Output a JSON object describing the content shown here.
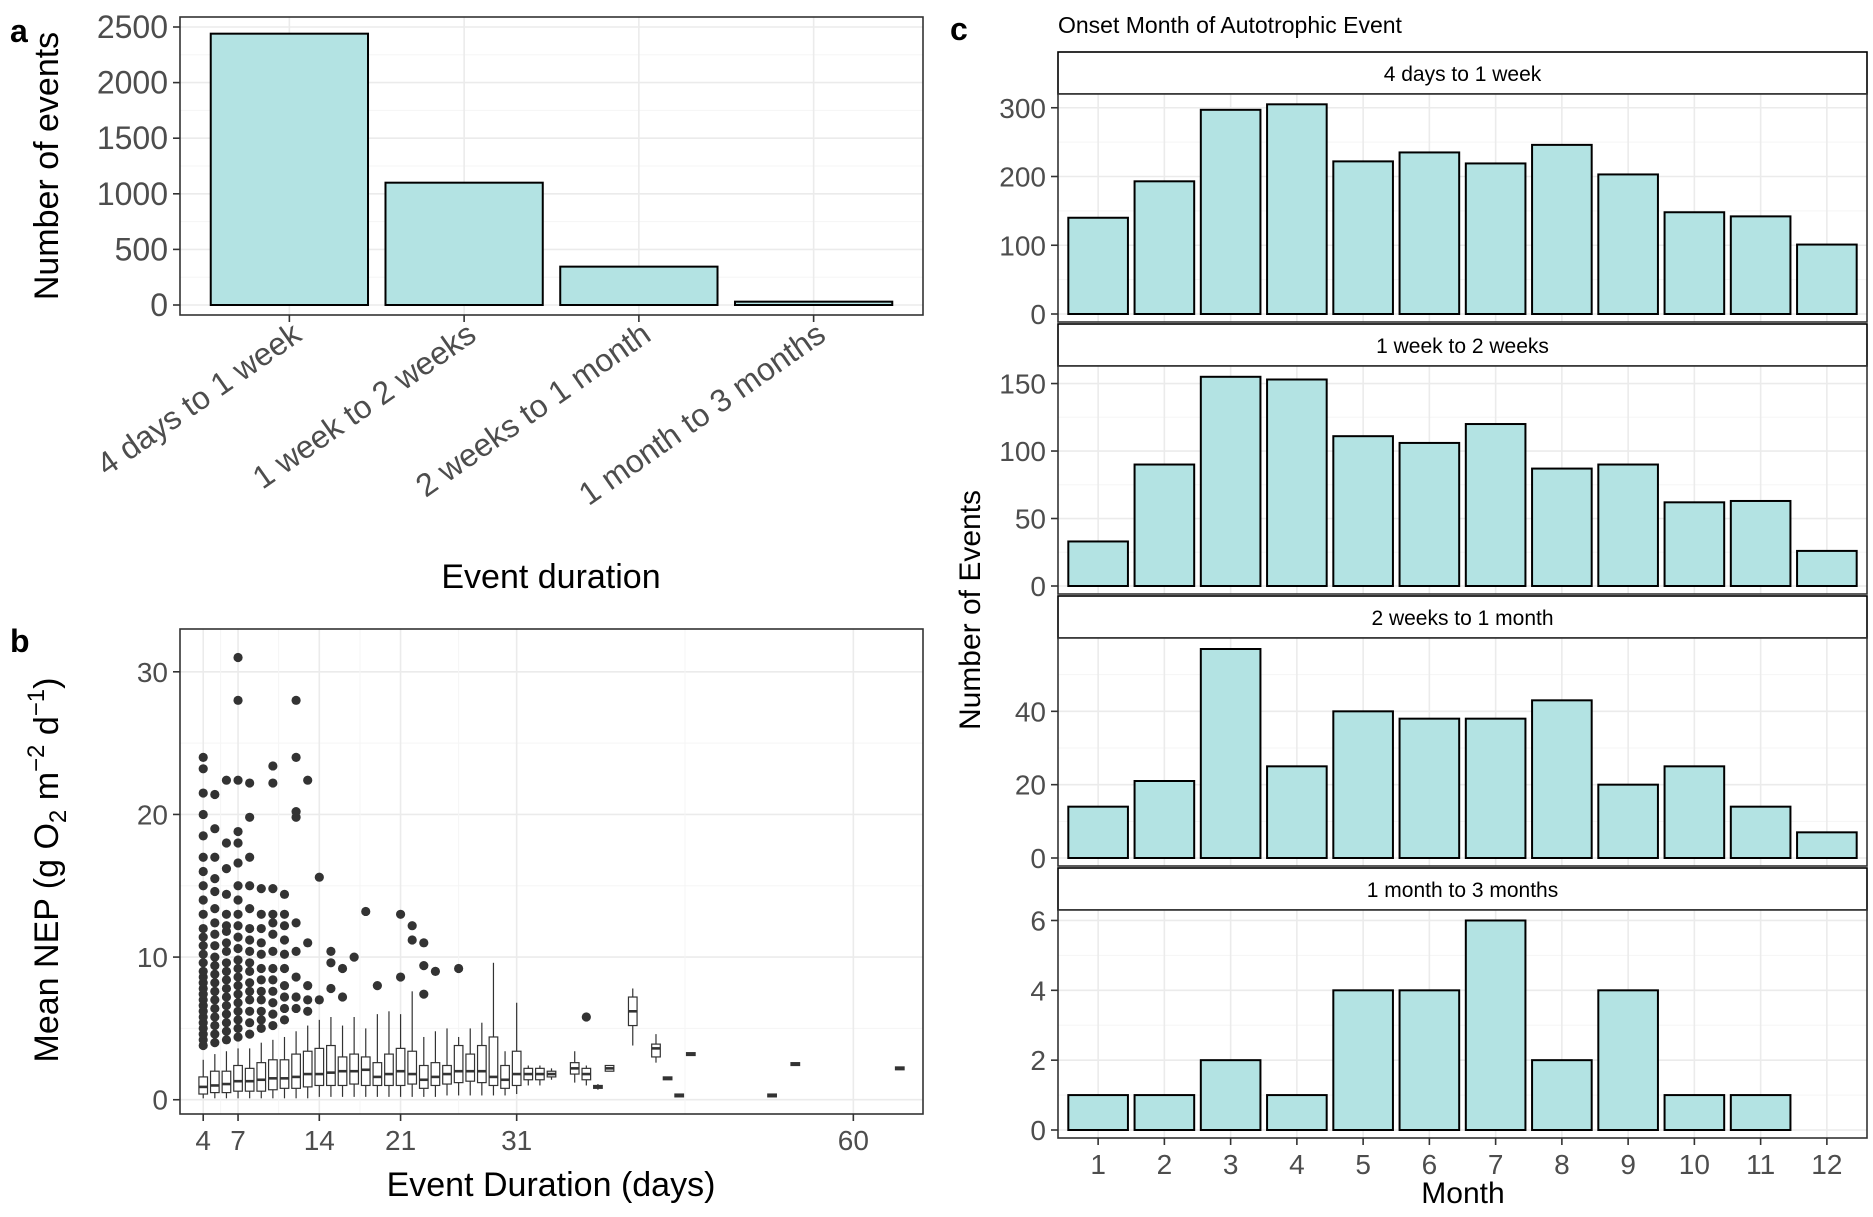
{
  "panel_labels": {
    "a": "a",
    "b": "b",
    "c": "c"
  },
  "colors": {
    "bar_fill": "#b3e3e3",
    "bar_stroke": "#000000",
    "outlier": "#333333"
  },
  "chart_data": [
    {
      "id": "a",
      "type": "bar",
      "title": "",
      "xlabel": "Event duration",
      "ylabel": "Number of events",
      "categories": [
        "4 days to 1 week",
        "1 week to 2 weeks",
        "2 weeks to 1 month",
        "1 month to 3 months"
      ],
      "values": [
        2440,
        1100,
        345,
        30
      ],
      "ylim": [
        0,
        2500
      ],
      "yticks": [
        0,
        500,
        1000,
        1500,
        2000,
        2500
      ],
      "grid": true
    },
    {
      "id": "b",
      "type": "box",
      "xlabel": "Event Duration (days)",
      "ylabel": "Mean NEP (g O2 m-2 d-1)",
      "ylabel_parts": {
        "pre": "Mean NEP (g  O",
        "sub": "2",
        "mid1": " m",
        "sup1": "−2",
        "mid2": " d",
        "sup2": "−1",
        "post": ")"
      },
      "xlim": [
        2,
        66
      ],
      "ylim": [
        -1,
        33
      ],
      "xticks": [
        4,
        7,
        14,
        21,
        31,
        60
      ],
      "yticks": [
        0,
        10,
        20,
        30
      ],
      "grid": true,
      "boxes": [
        {
          "x": 4,
          "q1": 0.4,
          "med": 0.9,
          "q3": 1.6,
          "lo": 0.1,
          "hi": 2.8,
          "out": [
            3.8,
            4.2,
            4.6,
            5.0,
            5.4,
            5.8,
            6.2,
            6.6,
            7.0,
            7.4,
            7.8,
            8.2,
            8.6,
            9.0,
            9.6,
            10.2,
            10.8,
            11.4,
            12.0,
            13.0,
            14.0,
            15.0,
            16.0,
            17.0,
            18.5,
            20.0,
            21.5,
            23.2,
            24.0
          ]
        },
        {
          "x": 5,
          "q1": 0.5,
          "med": 1.0,
          "q3": 2.0,
          "lo": 0.1,
          "hi": 3.2,
          "out": [
            4.0,
            4.6,
            5.2,
            5.8,
            6.4,
            7.0,
            7.6,
            8.2,
            8.8,
            9.4,
            10.0,
            10.8,
            11.6,
            12.4,
            13.4,
            14.6,
            15.5,
            17.0,
            19.0,
            21.4
          ]
        },
        {
          "x": 6,
          "q1": 0.5,
          "med": 1.1,
          "q3": 2.0,
          "lo": 0.1,
          "hi": 3.4,
          "out": [
            4.2,
            4.8,
            5.4,
            6.0,
            6.6,
            7.2,
            7.8,
            8.4,
            9.0,
            9.6,
            10.4,
            11.0,
            11.8,
            12.2,
            13.0,
            14.4,
            16.2,
            18.0,
            22.4
          ]
        },
        {
          "x": 7,
          "q1": 0.6,
          "med": 1.3,
          "q3": 2.4,
          "lo": 0.1,
          "hi": 3.6,
          "out": [
            4.4,
            5.0,
            5.6,
            6.2,
            6.8,
            7.4,
            8.0,
            8.6,
            9.2,
            9.8,
            10.6,
            11.4,
            12.2,
            13.0,
            14.0,
            15.0,
            16.6,
            18.0,
            18.8,
            22.4,
            28.0,
            31.0
          ]
        },
        {
          "x": 8,
          "q1": 0.6,
          "med": 1.3,
          "q3": 2.2,
          "lo": 0.1,
          "hi": 3.6,
          "out": [
            4.6,
            5.4,
            6.2,
            7.0,
            7.6,
            8.2,
            9.0,
            9.6,
            10.4,
            11.2,
            12.0,
            13.4,
            15.0,
            17.0,
            19.8,
            22.2
          ]
        },
        {
          "x": 9,
          "q1": 0.6,
          "med": 1.4,
          "q3": 2.6,
          "lo": 0.1,
          "hi": 4.0,
          "out": [
            5.0,
            5.6,
            6.2,
            7.0,
            7.6,
            8.4,
            9.2,
            10.2,
            11.0,
            12.0,
            13.0,
            14.8
          ]
        },
        {
          "x": 10,
          "q1": 0.7,
          "med": 1.5,
          "q3": 2.8,
          "lo": 0.1,
          "hi": 4.2,
          "out": [
            5.2,
            6.0,
            6.8,
            7.6,
            8.4,
            9.2,
            10.4,
            11.6,
            12.4,
            13.0,
            14.8,
            22.2,
            23.4
          ]
        },
        {
          "x": 11,
          "q1": 0.8,
          "med": 1.5,
          "q3": 2.8,
          "lo": 0.1,
          "hi": 4.4,
          "out": [
            5.6,
            6.4,
            7.2,
            8.0,
            9.2,
            10.2,
            11.2,
            12.2,
            13.0,
            14.4
          ]
        },
        {
          "x": 12,
          "q1": 0.8,
          "med": 1.6,
          "q3": 3.2,
          "lo": 0.1,
          "hi": 4.8,
          "out": [
            6.4,
            7.2,
            8.6,
            10.4,
            12.4,
            19.8,
            20.2,
            24.0,
            28.0
          ]
        },
        {
          "x": 13,
          "q1": 0.9,
          "med": 1.8,
          "q3": 3.4,
          "lo": 0.1,
          "hi": 5.2,
          "out": [
            6.2,
            7.0,
            8.0,
            11.0,
            22.4
          ]
        },
        {
          "x": 14,
          "q1": 1.0,
          "med": 1.8,
          "q3": 3.6,
          "lo": 0.2,
          "hi": 5.6,
          "out": [
            7.0,
            15.6
          ]
        },
        {
          "x": 15,
          "q1": 1.0,
          "med": 1.9,
          "q3": 3.8,
          "lo": 0.2,
          "hi": 5.8,
          "out": [
            7.8,
            9.6,
            10.4
          ]
        },
        {
          "x": 16,
          "q1": 1.0,
          "med": 2.0,
          "q3": 3.0,
          "lo": 0.2,
          "hi": 5.2,
          "out": [
            7.2,
            9.2
          ]
        },
        {
          "x": 17,
          "q1": 1.1,
          "med": 2.0,
          "q3": 3.2,
          "lo": 0.2,
          "hi": 5.8,
          "out": [
            10.0
          ]
        },
        {
          "x": 18,
          "q1": 1.0,
          "med": 2.1,
          "q3": 3.0,
          "lo": 0.2,
          "hi": 5.0,
          "out": [
            13.2
          ]
        },
        {
          "x": 19,
          "q1": 1.0,
          "med": 1.6,
          "q3": 2.6,
          "lo": 0.2,
          "hi": 6.0,
          "out": [
            8.0
          ]
        },
        {
          "x": 20,
          "q1": 1.0,
          "med": 1.8,
          "q3": 3.2,
          "lo": 0.2,
          "hi": 6.2,
          "out": []
        },
        {
          "x": 21,
          "q1": 1.0,
          "med": 2.0,
          "q3": 3.6,
          "lo": 0.2,
          "hi": 6.0,
          "out": [
            8.6,
            13.0
          ]
        },
        {
          "x": 22,
          "q1": 1.1,
          "med": 1.8,
          "q3": 3.4,
          "lo": 0.2,
          "hi": 7.6,
          "out": [
            11.2,
            12.2
          ]
        },
        {
          "x": 23,
          "q1": 0.8,
          "med": 1.4,
          "q3": 2.4,
          "lo": 0.2,
          "hi": 4.4,
          "out": [
            7.4,
            11.0,
            9.4
          ]
        },
        {
          "x": 24,
          "q1": 1.0,
          "med": 1.6,
          "q3": 2.6,
          "lo": 0.2,
          "hi": 4.8,
          "out": [
            9.0
          ]
        },
        {
          "x": 25,
          "q1": 1.1,
          "med": 1.8,
          "q3": 2.4,
          "lo": 0.3,
          "hi": 5.0,
          "out": []
        },
        {
          "x": 26,
          "q1": 1.2,
          "med": 2.0,
          "q3": 3.8,
          "lo": 0.3,
          "hi": 4.4,
          "out": [
            9.2
          ]
        },
        {
          "x": 27,
          "q1": 1.3,
          "med": 2.0,
          "q3": 3.2,
          "lo": 0.3,
          "hi": 5.0,
          "out": []
        },
        {
          "x": 28,
          "q1": 1.2,
          "med": 2.0,
          "q3": 3.8,
          "lo": 0.3,
          "hi": 5.4,
          "out": []
        },
        {
          "x": 29,
          "q1": 1.0,
          "med": 1.6,
          "q3": 4.4,
          "lo": 0.3,
          "hi": 9.6,
          "out": []
        },
        {
          "x": 30,
          "q1": 0.8,
          "med": 1.4,
          "q3": 2.4,
          "lo": 0.3,
          "hi": 3.4,
          "out": []
        },
        {
          "x": 31,
          "q1": 1.0,
          "med": 1.8,
          "q3": 3.4,
          "lo": 0.4,
          "hi": 6.8,
          "out": []
        },
        {
          "x": 32,
          "q1": 1.4,
          "med": 1.8,
          "q3": 2.2,
          "lo": 1.0,
          "hi": 2.4,
          "out": []
        },
        {
          "x": 33,
          "q1": 1.4,
          "med": 1.8,
          "q3": 2.2,
          "lo": 1.0,
          "hi": 2.4,
          "out": []
        },
        {
          "x": 34,
          "q1": 1.6,
          "med": 1.8,
          "q3": 2.0,
          "lo": 1.4,
          "hi": 2.2,
          "out": []
        },
        {
          "x": 36,
          "q1": 1.8,
          "med": 2.2,
          "q3": 2.6,
          "lo": 1.2,
          "hi": 3.4,
          "out": []
        },
        {
          "x": 37,
          "q1": 1.4,
          "med": 1.8,
          "q3": 2.2,
          "lo": 1.0,
          "hi": 2.4,
          "out": [
            5.8
          ]
        },
        {
          "x": 38,
          "q1": 0.8,
          "med": 0.9,
          "q3": 1.0,
          "lo": 0.7,
          "hi": 1.1,
          "out": []
        },
        {
          "x": 39,
          "q1": 2.0,
          "med": 2.2,
          "q3": 2.4,
          "lo": 2.0,
          "hi": 2.4,
          "out": []
        },
        {
          "x": 41,
          "q1": 5.2,
          "med": 6.2,
          "q3": 7.2,
          "lo": 3.8,
          "hi": 7.8,
          "out": []
        },
        {
          "x": 43,
          "q1": 3.0,
          "med": 3.6,
          "q3": 3.9,
          "lo": 2.6,
          "hi": 4.6,
          "out": []
        },
        {
          "x": 44,
          "q1": 1.4,
          "med": 1.5,
          "q3": 1.6,
          "lo": 1.4,
          "hi": 1.6,
          "out": []
        },
        {
          "x": 45,
          "q1": 0.2,
          "med": 0.3,
          "q3": 0.4,
          "lo": 0.2,
          "hi": 0.4,
          "out": []
        },
        {
          "x": 46,
          "q1": 3.1,
          "med": 3.2,
          "q3": 3.3,
          "lo": 3.1,
          "hi": 3.3,
          "out": []
        },
        {
          "x": 53,
          "q1": 0.2,
          "med": 0.3,
          "q3": 0.4,
          "lo": 0.2,
          "hi": 0.4,
          "out": []
        },
        {
          "x": 55,
          "q1": 2.4,
          "med": 2.5,
          "q3": 2.6,
          "lo": 2.4,
          "hi": 2.6,
          "out": []
        },
        {
          "x": 64,
          "q1": 2.1,
          "med": 2.2,
          "q3": 2.3,
          "lo": 2.1,
          "hi": 2.3,
          "out": []
        }
      ]
    },
    {
      "id": "c",
      "type": "bar",
      "title": "Onset Month of Autotrophic Event",
      "xlabel": "Month",
      "ylabel": "Number of Events",
      "categories": [
        "1",
        "2",
        "3",
        "4",
        "5",
        "6",
        "7",
        "8",
        "9",
        "10",
        "11",
        "12"
      ],
      "facets": [
        {
          "strip": "4 days to 1 week",
          "values": [
            140,
            193,
            297,
            305,
            222,
            235,
            219,
            246,
            203,
            148,
            142,
            101
          ],
          "ylim": [
            0,
            320
          ],
          "yticks": [
            0,
            100,
            200,
            300
          ]
        },
        {
          "strip": "1 week to 2 weeks",
          "values": [
            33,
            90,
            155,
            153,
            111,
            106,
            120,
            87,
            90,
            62,
            63,
            26
          ],
          "ylim": [
            0,
            163
          ],
          "yticks": [
            0,
            50,
            100,
            150
          ]
        },
        {
          "strip": "2 weeks to 1 month",
          "values": [
            14,
            21,
            57,
            25,
            40,
            38,
            38,
            43,
            20,
            25,
            14,
            7
          ],
          "ylim": [
            0,
            60
          ],
          "yticks": [
            0,
            20,
            40
          ]
        },
        {
          "strip": "1 month to 3 months",
          "values": [
            1,
            1,
            2,
            1,
            4,
            4,
            6,
            2,
            4,
            1,
            1,
            0
          ],
          "ylim": [
            0,
            6.3
          ],
          "yticks": [
            0,
            2,
            4,
            6
          ]
        }
      ]
    }
  ]
}
